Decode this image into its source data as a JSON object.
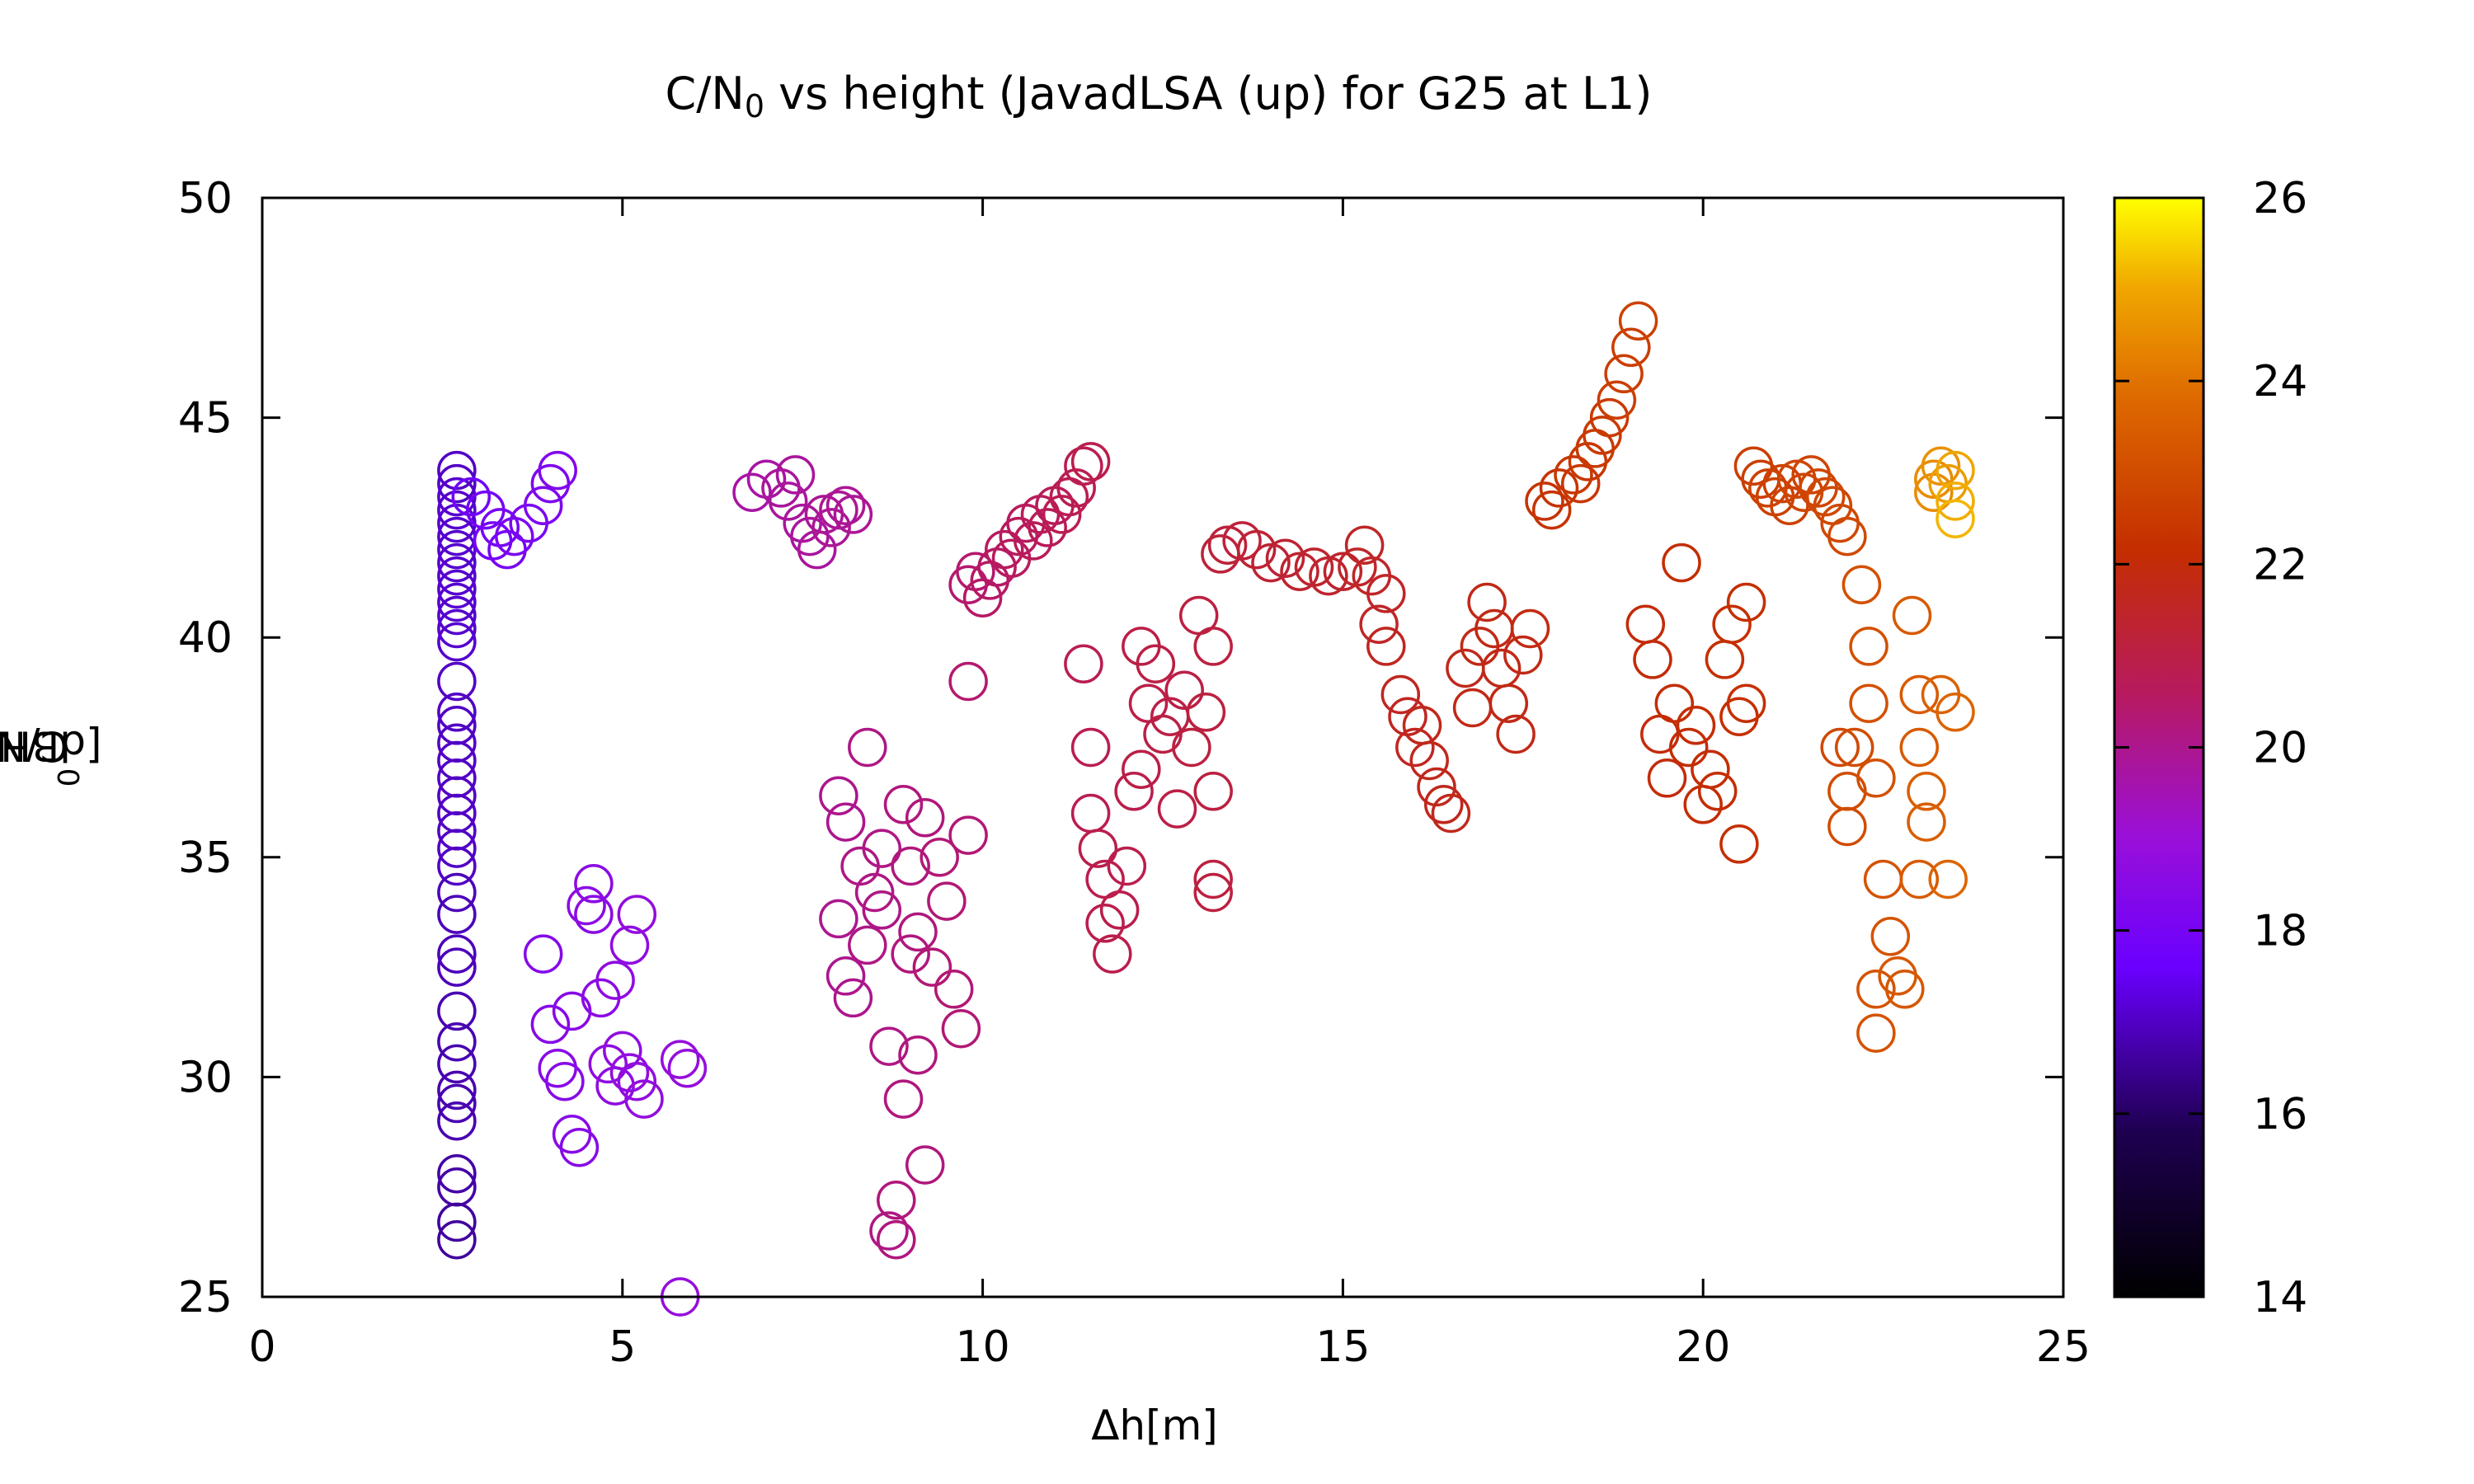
{
  "chart_data": {
    "type": "scatter",
    "title_main": "C/N",
    "title_sub": "0",
    "title_rest": " vs height (JavadLSA (up) for G25 at L1)",
    "xlabel": "Δh[m]",
    "ylabel_main": "C/N",
    "ylabel_sub": "0",
    "ylabel_rest": "[dBHz]",
    "xlim": [
      0,
      25
    ],
    "ylim": [
      25,
      50
    ],
    "xticks": [
      0,
      5,
      10,
      15,
      20,
      25
    ],
    "yticks": [
      25,
      30,
      35,
      40,
      45,
      50
    ],
    "colorbar": {
      "range": [
        14,
        26
      ],
      "ticks": [
        14,
        16,
        18,
        20,
        22,
        24,
        26
      ]
    },
    "marker": "open-circle",
    "grid": false,
    "points": [
      [
        2.7,
        43.8,
        17.0
      ],
      [
        2.7,
        43.5,
        17.0
      ],
      [
        2.7,
        43.2,
        17.1
      ],
      [
        2.7,
        42.9,
        17.1
      ],
      [
        2.7,
        42.6,
        17.1
      ],
      [
        2.7,
        42.3,
        17.1
      ],
      [
        2.7,
        42.0,
        17.1
      ],
      [
        2.7,
        41.7,
        17.1
      ],
      [
        2.7,
        41.4,
        17.1
      ],
      [
        2.7,
        41.1,
        17.1
      ],
      [
        2.7,
        40.8,
        17.1
      ],
      [
        2.7,
        40.5,
        17.1
      ],
      [
        2.7,
        40.2,
        17.1
      ],
      [
        2.7,
        39.9,
        17.1
      ],
      [
        2.7,
        39.0,
        17.0
      ],
      [
        2.7,
        38.3,
        17.0
      ],
      [
        2.7,
        38.0,
        17.0
      ],
      [
        2.7,
        37.6,
        17.0
      ],
      [
        2.7,
        37.2,
        17.0
      ],
      [
        2.7,
        36.8,
        17.0
      ],
      [
        2.7,
        36.4,
        17.0
      ],
      [
        2.7,
        36.0,
        17.0
      ],
      [
        2.7,
        35.6,
        17.0
      ],
      [
        2.7,
        35.2,
        17.0
      ],
      [
        2.7,
        34.8,
        17.0
      ],
      [
        2.7,
        34.2,
        16.9
      ],
      [
        2.7,
        33.7,
        16.9
      ],
      [
        2.7,
        32.8,
        16.9
      ],
      [
        2.7,
        32.5,
        16.9
      ],
      [
        2.7,
        31.5,
        16.8
      ],
      [
        2.7,
        30.8,
        16.8
      ],
      [
        2.7,
        30.3,
        16.8
      ],
      [
        2.7,
        29.7,
        16.8
      ],
      [
        2.7,
        29.4,
        16.8
      ],
      [
        2.7,
        29.0,
        16.8
      ],
      [
        2.7,
        27.8,
        16.7
      ],
      [
        2.7,
        27.5,
        16.7
      ],
      [
        2.7,
        26.7,
        16.6
      ],
      [
        2.7,
        26.3,
        16.6
      ],
      [
        2.9,
        43.2,
        17.8
      ],
      [
        3.1,
        42.9,
        17.9
      ],
      [
        3.3,
        42.5,
        18.0
      ],
      [
        3.5,
        42.3,
        18.1
      ],
      [
        3.7,
        42.6,
        18.1
      ],
      [
        3.9,
        43.0,
        18.2
      ],
      [
        4.0,
        43.5,
        18.2
      ],
      [
        4.1,
        43.8,
        18.3
      ],
      [
        3.2,
        42.2,
        17.9
      ],
      [
        3.4,
        42.0,
        18.0
      ],
      [
        3.9,
        32.8,
        18.4
      ],
      [
        4.0,
        31.2,
        18.4
      ],
      [
        4.1,
        30.2,
        18.5
      ],
      [
        4.2,
        29.9,
        18.5
      ],
      [
        4.3,
        31.5,
        18.5
      ],
      [
        4.3,
        28.7,
        18.5
      ],
      [
        4.4,
        28.4,
        18.5
      ],
      [
        4.5,
        33.9,
        18.6
      ],
      [
        4.6,
        34.4,
        18.6
      ],
      [
        4.6,
        33.7,
        18.6
      ],
      [
        4.7,
        31.8,
        18.6
      ],
      [
        4.8,
        30.3,
        18.7
      ],
      [
        4.9,
        32.2,
        18.7
      ],
      [
        4.9,
        29.8,
        18.7
      ],
      [
        5.0,
        30.6,
        18.7
      ],
      [
        5.1,
        33.0,
        18.7
      ],
      [
        5.1,
        30.1,
        18.8
      ],
      [
        5.2,
        33.7,
        18.8
      ],
      [
        5.3,
        29.5,
        18.8
      ],
      [
        5.2,
        29.9,
        18.8
      ],
      [
        5.8,
        30.4,
        18.9
      ],
      [
        5.9,
        30.2,
        18.9
      ],
      [
        5.8,
        25.0,
        18.9
      ],
      [
        6.8,
        43.3,
        19.7
      ],
      [
        7.0,
        43.6,
        19.7
      ],
      [
        7.2,
        43.4,
        19.8
      ],
      [
        7.3,
        43.1,
        19.8
      ],
      [
        7.4,
        43.7,
        19.8
      ],
      [
        7.5,
        42.6,
        19.8
      ],
      [
        7.6,
        42.3,
        19.8
      ],
      [
        7.7,
        42.0,
        19.8
      ],
      [
        7.8,
        42.8,
        19.9
      ],
      [
        7.9,
        42.5,
        19.9
      ],
      [
        8.0,
        42.9,
        19.9
      ],
      [
        8.1,
        43.0,
        19.9
      ],
      [
        8.2,
        42.8,
        19.9
      ],
      [
        8.0,
        36.4,
        20.0
      ],
      [
        8.0,
        33.6,
        20.0
      ],
      [
        8.1,
        35.8,
        20.0
      ],
      [
        8.1,
        32.3,
        20.0
      ],
      [
        8.2,
        31.8,
        20.0
      ],
      [
        8.3,
        34.8,
        20.1
      ],
      [
        8.4,
        37.5,
        20.1
      ],
      [
        8.4,
        33.0,
        20.1
      ],
      [
        8.5,
        34.2,
        20.1
      ],
      [
        8.6,
        35.2,
        20.1
      ],
      [
        8.6,
        33.8,
        20.1
      ],
      [
        8.7,
        30.7,
        20.1
      ],
      [
        8.7,
        26.5,
        20.1
      ],
      [
        8.8,
        27.2,
        20.2
      ],
      [
        8.8,
        26.3,
        20.2
      ],
      [
        8.9,
        36.2,
        20.2
      ],
      [
        8.9,
        29.5,
        20.2
      ],
      [
        9.0,
        34.8,
        20.2
      ],
      [
        9.0,
        32.8,
        20.2
      ],
      [
        9.1,
        33.3,
        20.2
      ],
      [
        9.1,
        30.5,
        20.2
      ],
      [
        9.2,
        35.9,
        20.2
      ],
      [
        9.2,
        28.0,
        20.2
      ],
      [
        9.3,
        32.5,
        20.3
      ],
      [
        9.4,
        35.0,
        20.3
      ],
      [
        9.5,
        34.0,
        20.3
      ],
      [
        9.6,
        32.0,
        20.3
      ],
      [
        9.7,
        31.1,
        20.3
      ],
      [
        9.8,
        35.5,
        20.3
      ],
      [
        9.8,
        39.0,
        20.4
      ],
      [
        9.8,
        41.2,
        20.4
      ],
      [
        9.9,
        41.5,
        20.4
      ],
      [
        10.0,
        40.9,
        20.5
      ],
      [
        10.1,
        41.3,
        20.5
      ],
      [
        10.2,
        41.6,
        20.5
      ],
      [
        10.3,
        42.0,
        20.6
      ],
      [
        10.4,
        41.8,
        20.6
      ],
      [
        10.5,
        42.3,
        20.6
      ],
      [
        10.6,
        42.6,
        20.6
      ],
      [
        10.7,
        42.2,
        20.7
      ],
      [
        10.8,
        42.8,
        20.7
      ],
      [
        10.9,
        42.5,
        20.7
      ],
      [
        11.0,
        43.0,
        20.7
      ],
      [
        11.1,
        42.8,
        20.8
      ],
      [
        11.2,
        43.2,
        20.8
      ],
      [
        11.3,
        43.4,
        20.8
      ],
      [
        11.4,
        43.9,
        20.8
      ],
      [
        11.5,
        44.0,
        20.9
      ],
      [
        11.4,
        39.4,
        20.8
      ],
      [
        11.5,
        37.5,
        20.8
      ],
      [
        11.5,
        36.0,
        20.8
      ],
      [
        11.6,
        35.2,
        20.9
      ],
      [
        11.7,
        34.5,
        20.9
      ],
      [
        11.7,
        33.5,
        20.9
      ],
      [
        11.8,
        32.8,
        20.9
      ],
      [
        11.9,
        33.8,
        20.9
      ],
      [
        12.0,
        34.8,
        20.9
      ],
      [
        12.1,
        36.5,
        20.9
      ],
      [
        12.2,
        37.0,
        21.0
      ],
      [
        12.2,
        39.8,
        21.0
      ],
      [
        12.3,
        38.5,
        21.0
      ],
      [
        12.4,
        39.4,
        21.0
      ],
      [
        12.5,
        37.8,
        21.0
      ],
      [
        12.6,
        38.2,
        21.0
      ],
      [
        12.7,
        36.1,
        21.0
      ],
      [
        12.8,
        38.8,
        21.0
      ],
      [
        12.9,
        37.5,
        21.1
      ],
      [
        13.0,
        40.5,
        21.1
      ],
      [
        13.1,
        38.3,
        21.1
      ],
      [
        13.2,
        39.8,
        21.1
      ],
      [
        13.2,
        36.5,
        21.1
      ],
      [
        13.2,
        34.5,
        21.1
      ],
      [
        13.2,
        34.2,
        21.1
      ],
      [
        13.3,
        41.9,
        21.2
      ],
      [
        13.4,
        42.1,
        21.2
      ],
      [
        13.6,
        42.2,
        21.2
      ],
      [
        13.8,
        42.0,
        21.3
      ],
      [
        14.0,
        41.7,
        21.3
      ],
      [
        14.2,
        41.8,
        21.3
      ],
      [
        14.4,
        41.5,
        21.4
      ],
      [
        14.6,
        41.6,
        21.4
      ],
      [
        14.8,
        41.4,
        21.4
      ],
      [
        15.0,
        41.5,
        21.4
      ],
      [
        15.2,
        41.6,
        21.5
      ],
      [
        15.3,
        42.1,
        21.5
      ],
      [
        15.4,
        41.4,
        21.5
      ],
      [
        15.6,
        41.0,
        21.5
      ],
      [
        15.5,
        40.3,
        21.5
      ],
      [
        15.6,
        39.8,
        21.6
      ],
      [
        15.8,
        38.7,
        21.6
      ],
      [
        15.9,
        38.2,
        21.6
      ],
      [
        16.0,
        37.5,
        21.6
      ],
      [
        16.1,
        38.0,
        21.7
      ],
      [
        16.2,
        37.2,
        21.7
      ],
      [
        16.3,
        36.6,
        21.7
      ],
      [
        16.4,
        36.2,
        21.7
      ],
      [
        16.5,
        36.0,
        21.7
      ],
      [
        16.7,
        39.3,
        21.7
      ],
      [
        16.8,
        38.4,
        21.8
      ],
      [
        16.9,
        39.8,
        21.8
      ],
      [
        17.0,
        40.8,
        21.8
      ],
      [
        17.1,
        40.2,
        21.8
      ],
      [
        17.2,
        39.3,
        21.8
      ],
      [
        17.3,
        38.5,
        21.8
      ],
      [
        17.4,
        37.8,
        21.8
      ],
      [
        17.5,
        39.6,
        21.8
      ],
      [
        17.6,
        40.2,
        21.9
      ],
      [
        17.8,
        43.1,
        22.3
      ],
      [
        17.9,
        42.9,
        22.3
      ],
      [
        18.0,
        43.4,
        22.3
      ],
      [
        18.2,
        43.7,
        22.4
      ],
      [
        18.3,
        43.5,
        22.4
      ],
      [
        18.4,
        44.0,
        22.4
      ],
      [
        18.5,
        44.3,
        22.5
      ],
      [
        18.6,
        44.6,
        22.5
      ],
      [
        18.7,
        45.0,
        22.5
      ],
      [
        18.8,
        45.4,
        22.6
      ],
      [
        18.9,
        46.0,
        22.6
      ],
      [
        19.0,
        46.6,
        22.6
      ],
      [
        19.1,
        47.2,
        22.7
      ],
      [
        19.2,
        40.3,
        22.0
      ],
      [
        19.3,
        39.5,
        22.0
      ],
      [
        19.4,
        37.8,
        22.0
      ],
      [
        19.5,
        36.8,
        22.0
      ],
      [
        19.6,
        38.5,
        22.1
      ],
      [
        19.7,
        41.7,
        22.1
      ],
      [
        19.8,
        37.5,
        22.1
      ],
      [
        19.9,
        38.0,
        22.1
      ],
      [
        20.0,
        36.2,
        22.1
      ],
      [
        20.1,
        37.0,
        22.1
      ],
      [
        20.2,
        36.5,
        22.1
      ],
      [
        20.3,
        39.5,
        22.2
      ],
      [
        20.4,
        40.3,
        22.2
      ],
      [
        20.5,
        38.2,
        22.2
      ],
      [
        20.5,
        35.3,
        22.2
      ],
      [
        20.6,
        38.5,
        22.2
      ],
      [
        20.6,
        40.8,
        22.2
      ],
      [
        20.7,
        43.9,
        22.6
      ],
      [
        20.8,
        43.6,
        22.6
      ],
      [
        20.9,
        43.4,
        22.7
      ],
      [
        21.0,
        43.2,
        22.7
      ],
      [
        21.1,
        43.5,
        22.7
      ],
      [
        21.2,
        43.0,
        22.7
      ],
      [
        21.3,
        43.6,
        22.8
      ],
      [
        21.4,
        43.3,
        22.8
      ],
      [
        21.5,
        43.7,
        22.8
      ],
      [
        21.6,
        43.4,
        22.8
      ],
      [
        21.7,
        43.2,
        22.9
      ],
      [
        21.8,
        43.0,
        22.9
      ],
      [
        21.9,
        42.6,
        22.9
      ],
      [
        22.0,
        42.3,
        22.9
      ],
      [
        21.9,
        37.5,
        22.9
      ],
      [
        22.0,
        36.5,
        23.0
      ],
      [
        22.0,
        35.7,
        23.0
      ],
      [
        22.1,
        37.5,
        23.0
      ],
      [
        22.2,
        41.2,
        23.1
      ],
      [
        22.3,
        39.8,
        23.1
      ],
      [
        22.3,
        38.5,
        23.1
      ],
      [
        22.4,
        36.8,
        23.1
      ],
      [
        22.4,
        32.0,
        23.2
      ],
      [
        22.4,
        31.0,
        23.2
      ],
      [
        22.5,
        34.5,
        23.2
      ],
      [
        22.6,
        33.2,
        23.2
      ],
      [
        22.7,
        32.3,
        23.3
      ],
      [
        22.8,
        32.0,
        23.3
      ],
      [
        22.9,
        40.5,
        23.4
      ],
      [
        23.0,
        38.7,
        23.4
      ],
      [
        23.0,
        37.5,
        23.4
      ],
      [
        23.1,
        36.5,
        23.5
      ],
      [
        23.1,
        35.8,
        23.5
      ],
      [
        23.0,
        34.5,
        23.4
      ],
      [
        23.3,
        38.7,
        23.6
      ],
      [
        23.4,
        34.5,
        23.7
      ],
      [
        23.5,
        38.3,
        23.7
      ],
      [
        23.2,
        43.6,
        24.5
      ],
      [
        23.2,
        43.3,
        24.5
      ],
      [
        23.3,
        43.9,
        24.6
      ],
      [
        23.4,
        43.5,
        24.8
      ],
      [
        23.5,
        43.8,
        25.0
      ],
      [
        23.5,
        43.1,
        25.1
      ],
      [
        23.5,
        42.7,
        25.2
      ]
    ]
  }
}
